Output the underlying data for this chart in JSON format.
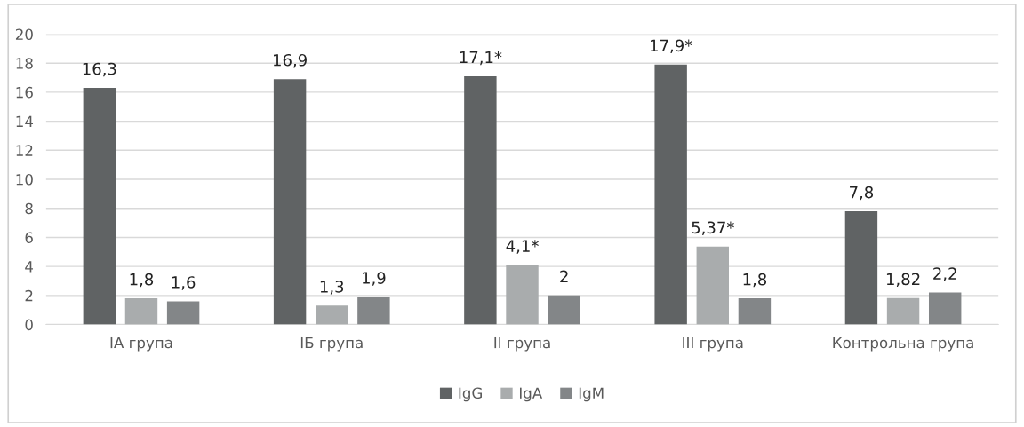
{
  "chart_data": {
    "type": "bar",
    "categories": [
      "ІА група",
      "ІБ група",
      "ІІ група",
      "ІІІ група",
      "Контрольна група"
    ],
    "series": [
      {
        "name": "IgG",
        "color": "#606364",
        "values": [
          16.3,
          16.9,
          17.1,
          17.9,
          7.8
        ],
        "value_labels": [
          "16,3",
          "16,9",
          "17,1*",
          "17,9*",
          "7,8"
        ]
      },
      {
        "name": "IgA",
        "color": "#a9acad",
        "values": [
          1.8,
          1.3,
          4.1,
          5.37,
          1.82
        ],
        "value_labels": [
          "1,8",
          "1,3",
          "4,1*",
          "5,37*",
          "1,82"
        ]
      },
      {
        "name": "IgM",
        "color": "#838688",
        "values": [
          1.6,
          1.9,
          2,
          1.8,
          2.2
        ],
        "value_labels": [
          "1,6",
          "1,9",
          "2",
          "1,8",
          "2,2"
        ]
      }
    ],
    "ylim": [
      0,
      20
    ],
    "yticks": [
      0,
      2,
      4,
      6,
      8,
      10,
      12,
      14,
      16,
      18,
      20
    ],
    "grid": "y",
    "legend": "bottom"
  }
}
